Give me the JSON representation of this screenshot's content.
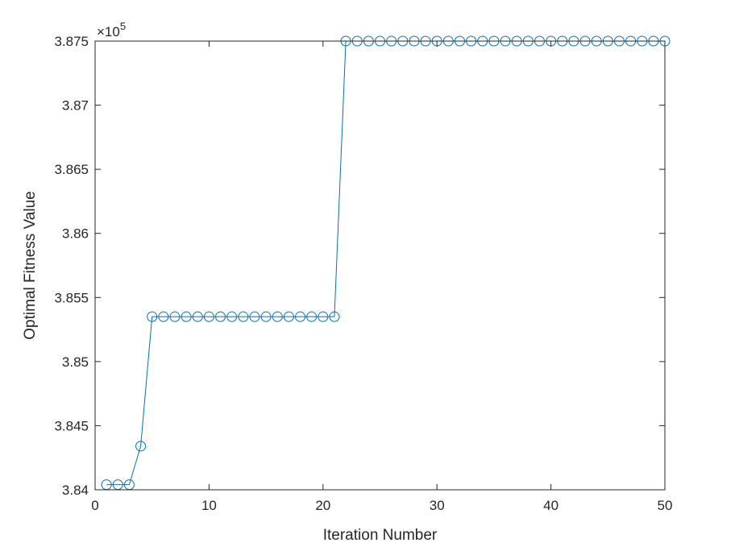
{
  "chart_data": {
    "type": "line",
    "xlabel": "Iteration Number",
    "ylabel": "Optimal Fitness Value",
    "xlim": [
      0,
      50
    ],
    "ylim": [
      3.84,
      3.875
    ],
    "x_ticks": [
      "0",
      "10",
      "20",
      "30",
      "40",
      "50"
    ],
    "y_ticks": [
      "3.84",
      "3.845",
      "3.85",
      "3.855",
      "3.86",
      "3.865",
      "3.87",
      "3.875"
    ],
    "y_multiplier_base": "×10",
    "y_multiplier_exponent": "5",
    "grid": false,
    "colors": {
      "series": "#0072bd",
      "axis": "#262626"
    },
    "series": [
      {
        "marker": "circle",
        "x": [
          1,
          2,
          3,
          4,
          5,
          6,
          7,
          8,
          9,
          10,
          11,
          12,
          13,
          14,
          15,
          16,
          17,
          18,
          19,
          20,
          21,
          22,
          23,
          24,
          25,
          26,
          27,
          28,
          29,
          30,
          31,
          32,
          33,
          34,
          35,
          36,
          37,
          38,
          39,
          40,
          41,
          42,
          43,
          44,
          45,
          46,
          47,
          48,
          49,
          50
        ],
        "y": [
          3.8404,
          3.8404,
          3.8404,
          3.8434,
          3.8535,
          3.8535,
          3.8535,
          3.8535,
          3.8535,
          3.8535,
          3.8535,
          3.8535,
          3.8535,
          3.8535,
          3.8535,
          3.8535,
          3.8535,
          3.8535,
          3.8535,
          3.8535,
          3.8535,
          3.875,
          3.875,
          3.875,
          3.875,
          3.875,
          3.875,
          3.875,
          3.875,
          3.875,
          3.875,
          3.875,
          3.875,
          3.875,
          3.875,
          3.875,
          3.875,
          3.875,
          3.875,
          3.875,
          3.875,
          3.875,
          3.875,
          3.875,
          3.875,
          3.875,
          3.875,
          3.875,
          3.875,
          3.875
        ]
      }
    ]
  }
}
